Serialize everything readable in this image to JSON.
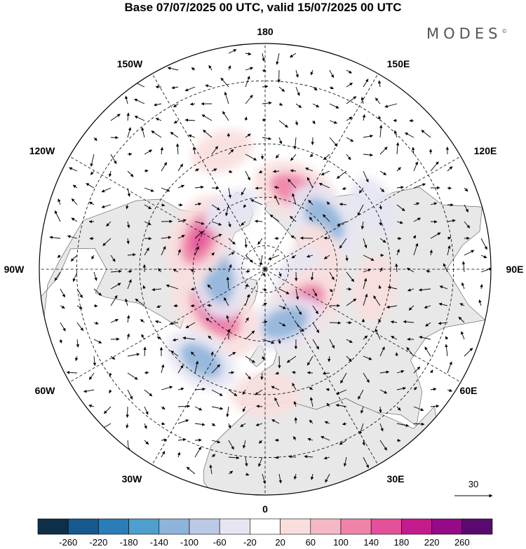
{
  "title": "Base 07/07/2025 00 UTC, valid 15/07/2025 00 UTC",
  "logo": "MODES",
  "logo_mark": "©",
  "map": {
    "projection": "north-polar-stereographic",
    "longitude_labels": [
      "180",
      "150E",
      "120E",
      "90E",
      "60E",
      "30E",
      "0",
      "30W",
      "60W",
      "90W",
      "120W",
      "150W"
    ],
    "reference_vector_value": "30"
  },
  "colorbar": {
    "labels": [
      "-260",
      "-220",
      "-180",
      "-140",
      "-100",
      "-60",
      "-20",
      "20",
      "60",
      "100",
      "140",
      "180",
      "220",
      "260"
    ],
    "colors": [
      "#0d2f4a",
      "#16598e",
      "#2a7db8",
      "#4e9fce",
      "#8eb4d9",
      "#bcc9e4",
      "#e6e6f3",
      "#ffffff",
      "#f9dede",
      "#f5b8c4",
      "#f083a8",
      "#e2519a",
      "#c41b8c",
      "#940a88",
      "#5a0a6e"
    ]
  },
  "anomaly_features": [
    {
      "lon": 160,
      "lat": 55,
      "value": 120
    },
    {
      "lon": 130,
      "lat": 58,
      "value": -120
    },
    {
      "lon": 100,
      "lat": 68,
      "value": 90
    },
    {
      "lon": 70,
      "lat": 75,
      "value": -80
    },
    {
      "lon": 45,
      "lat": 68,
      "value": 150
    },
    {
      "lon": 20,
      "lat": 66,
      "value": -110
    },
    {
      "lon": 0,
      "lat": 40,
      "value": 70
    },
    {
      "lon": -50,
      "lat": 63,
      "value": 200
    },
    {
      "lon": -80,
      "lat": 70,
      "value": -130
    },
    {
      "lon": -115,
      "lat": 60,
      "value": 150
    },
    {
      "lon": -150,
      "lat": 62,
      "value": -40
    },
    {
      "lon": -35,
      "lat": 45,
      "value": -100
    },
    {
      "lon": 80,
      "lat": 45,
      "value": 60
    },
    {
      "lon": -160,
      "lat": 40,
      "value": 50
    },
    {
      "lon": 120,
      "lat": 40,
      "value": -50
    }
  ]
}
